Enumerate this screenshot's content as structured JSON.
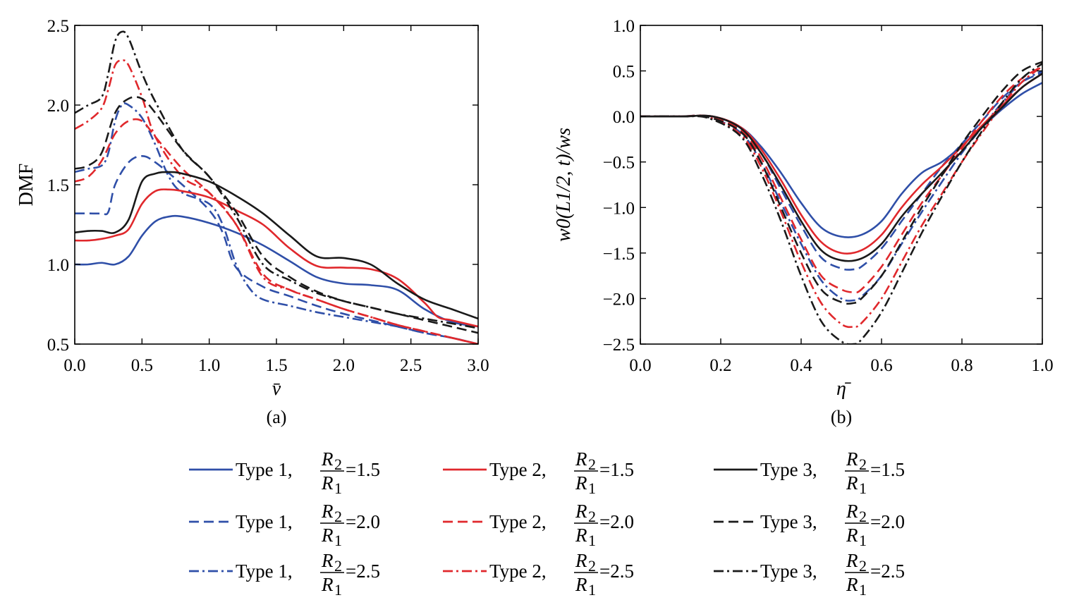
{
  "chart_data": [
    {
      "id": "a",
      "type": "line",
      "caption": "(a)",
      "xlabel": "v̄",
      "ylabel": "DMF",
      "xlim": [
        0.0,
        3.0
      ],
      "ylim": [
        0.5,
        2.5
      ],
      "xticks": [
        "0.0",
        "0.5",
        "1.0",
        "1.5",
        "2.0",
        "2.5",
        "3.0"
      ],
      "yticks": [
        "0.5",
        "1.0",
        "1.5",
        "2.0",
        "2.5"
      ],
      "grid": false,
      "series": [
        {
          "name": "Type 1, R2/R1=1.5",
          "color": "#2f4fa8",
          "dash": "solid",
          "x": [
            0,
            0.1,
            0.2,
            0.3,
            0.4,
            0.5,
            0.6,
            0.7,
            0.8,
            1.0,
            1.2,
            1.4,
            1.6,
            1.8,
            2.0,
            2.2,
            2.4,
            2.6,
            2.8,
            3.0
          ],
          "y": [
            1.0,
            1.0,
            1.01,
            1.0,
            1.05,
            1.18,
            1.27,
            1.3,
            1.3,
            1.26,
            1.2,
            1.12,
            1.02,
            0.92,
            0.88,
            0.87,
            0.84,
            0.72,
            0.64,
            0.61
          ]
        },
        {
          "name": "Type 1, R2/R1=2.0",
          "color": "#2f4fa8",
          "dash": "dashed",
          "x": [
            0,
            0.1,
            0.2,
            0.25,
            0.3,
            0.4,
            0.5,
            0.6,
            0.8,
            1.0,
            1.1,
            1.2,
            1.4,
            1.6,
            1.8,
            2.0,
            2.2,
            2.4,
            2.6,
            2.8,
            3.0
          ],
          "y": [
            1.32,
            1.32,
            1.32,
            1.33,
            1.5,
            1.64,
            1.68,
            1.64,
            1.5,
            1.34,
            1.2,
            0.98,
            0.86,
            0.8,
            0.74,
            0.69,
            0.65,
            0.61,
            0.57,
            0.54,
            0.5
          ]
        },
        {
          "name": "Type 1, R2/R1=2.5",
          "color": "#2f4fa8",
          "dash": "dashdot",
          "x": [
            0,
            0.1,
            0.2,
            0.25,
            0.3,
            0.35,
            0.4,
            0.5,
            0.6,
            0.7,
            0.8,
            1.0,
            1.1,
            1.2,
            1.3,
            1.4,
            1.6,
            1.8,
            2.0,
            2.2,
            2.4,
            2.6,
            2.8,
            3.0
          ],
          "y": [
            1.58,
            1.6,
            1.62,
            1.7,
            1.9,
            2.0,
            2.0,
            1.92,
            1.75,
            1.55,
            1.45,
            1.38,
            1.25,
            1.0,
            0.85,
            0.78,
            0.74,
            0.7,
            0.67,
            0.64,
            0.61,
            0.57,
            0.54,
            0.5
          ]
        },
        {
          "name": "Type 2, R2/R1=1.5",
          "color": "#e0282c",
          "dash": "solid",
          "x": [
            0,
            0.1,
            0.2,
            0.3,
            0.4,
            0.5,
            0.6,
            0.7,
            0.8,
            1.0,
            1.2,
            1.4,
            1.6,
            1.8,
            2.0,
            2.2,
            2.4,
            2.6,
            2.7,
            2.8,
            3.0
          ],
          "y": [
            1.15,
            1.15,
            1.16,
            1.18,
            1.22,
            1.38,
            1.46,
            1.47,
            1.46,
            1.42,
            1.34,
            1.25,
            1.1,
            0.99,
            0.98,
            0.97,
            0.91,
            0.76,
            0.67,
            0.65,
            0.61
          ]
        },
        {
          "name": "Type 2, R2/R1=2.0",
          "color": "#e0282c",
          "dash": "dashed",
          "x": [
            0,
            0.1,
            0.2,
            0.3,
            0.4,
            0.5,
            0.6,
            0.8,
            1.0,
            1.2,
            1.4,
            1.6,
            1.8,
            2.0,
            2.2,
            2.4,
            2.6,
            2.8,
            3.0
          ],
          "y": [
            1.52,
            1.55,
            1.65,
            1.82,
            1.9,
            1.9,
            1.8,
            1.6,
            1.45,
            1.25,
            0.94,
            0.84,
            0.78,
            0.72,
            0.67,
            0.62,
            0.58,
            0.54,
            0.5
          ]
        },
        {
          "name": "Type 2, R2/R1=2.5",
          "color": "#e0282c",
          "dash": "dashdot",
          "x": [
            0,
            0.1,
            0.2,
            0.25,
            0.3,
            0.35,
            0.4,
            0.5,
            0.6,
            0.8,
            1.0,
            1.2,
            1.4,
            1.6,
            1.8,
            2.0,
            2.2,
            2.4,
            2.6,
            2.8,
            3.0
          ],
          "y": [
            1.85,
            1.9,
            1.98,
            2.1,
            2.25,
            2.28,
            2.25,
            2.05,
            1.8,
            1.55,
            1.45,
            1.25,
            0.92,
            0.84,
            0.78,
            0.72,
            0.67,
            0.62,
            0.58,
            0.54,
            0.5
          ]
        },
        {
          "name": "Type 3, R2/R1=1.5",
          "color": "#1a1a1a",
          "dash": "solid",
          "x": [
            0,
            0.1,
            0.2,
            0.3,
            0.4,
            0.5,
            0.6,
            0.7,
            0.8,
            1.0,
            1.2,
            1.4,
            1.6,
            1.8,
            2.0,
            2.2,
            2.4,
            2.6,
            2.8,
            3.0
          ],
          "y": [
            1.2,
            1.21,
            1.21,
            1.2,
            1.28,
            1.52,
            1.57,
            1.58,
            1.57,
            1.52,
            1.43,
            1.32,
            1.18,
            1.05,
            1.04,
            1.0,
            0.88,
            0.78,
            0.72,
            0.66
          ]
        },
        {
          "name": "Type 3, R2/R1=2.0",
          "color": "#1a1a1a",
          "dash": "dashed",
          "x": [
            0,
            0.1,
            0.2,
            0.3,
            0.4,
            0.5,
            0.6,
            0.8,
            1.0,
            1.2,
            1.4,
            1.6,
            1.8,
            2.0,
            2.2,
            2.4,
            2.6,
            2.8,
            3.0
          ],
          "y": [
            1.6,
            1.62,
            1.7,
            1.95,
            2.04,
            2.04,
            1.95,
            1.72,
            1.55,
            1.33,
            1.05,
            0.92,
            0.83,
            0.77,
            0.73,
            0.69,
            0.65,
            0.61,
            0.57
          ]
        },
        {
          "name": "Type 3, R2/R1=2.5",
          "color": "#1a1a1a",
          "dash": "dashdot",
          "x": [
            0,
            0.1,
            0.2,
            0.25,
            0.3,
            0.35,
            0.4,
            0.5,
            0.6,
            0.8,
            1.0,
            1.2,
            1.4,
            1.6,
            1.8,
            2.0,
            2.2,
            2.4,
            2.6,
            2.8,
            3.0
          ],
          "y": [
            1.95,
            2.0,
            2.05,
            2.2,
            2.4,
            2.46,
            2.42,
            2.2,
            2.02,
            1.72,
            1.55,
            1.3,
            1.0,
            0.9,
            0.82,
            0.77,
            0.73,
            0.69,
            0.66,
            0.63,
            0.6
          ]
        }
      ]
    },
    {
      "id": "b",
      "type": "line",
      "caption": "(b)",
      "xlabel": "η̄",
      "ylabel": "w0(L1/2, t)/ws",
      "xlim": [
        0.0,
        1.0
      ],
      "ylim": [
        -2.5,
        1.0
      ],
      "xticks": [
        "0.0",
        "0.2",
        "0.4",
        "0.6",
        "0.8",
        "1.0"
      ],
      "yticks": [
        "1.0",
        "0.5",
        "0.0",
        "−0.5",
        "−1.0",
        "−1.5",
        "−2.0",
        "−2.5"
      ],
      "grid": false,
      "series": [
        {
          "name": "Type 1, R2/R1=1.5",
          "color": "#2f4fa8",
          "dash": "solid",
          "x": [
            0,
            0.1,
            0.18,
            0.25,
            0.3,
            0.35,
            0.4,
            0.45,
            0.5,
            0.55,
            0.6,
            0.65,
            0.7,
            0.75,
            0.8,
            0.85,
            0.9,
            0.95,
            1.0
          ],
          "y": [
            0,
            0,
            0,
            -0.12,
            -0.33,
            -0.62,
            -0.95,
            -1.22,
            -1.32,
            -1.3,
            -1.15,
            -0.85,
            -0.62,
            -0.5,
            -0.32,
            -0.12,
            0.08,
            0.25,
            0.37
          ]
        },
        {
          "name": "Type 1, R2/R1=2.0",
          "color": "#2f4fa8",
          "dash": "dashed",
          "x": [
            0,
            0.1,
            0.17,
            0.25,
            0.3,
            0.35,
            0.4,
            0.45,
            0.5,
            0.53,
            0.55,
            0.6,
            0.65,
            0.7,
            0.75,
            0.8,
            0.85,
            0.9,
            0.95,
            1.0
          ],
          "y": [
            0,
            0,
            0,
            -0.15,
            -0.4,
            -0.8,
            -1.2,
            -1.55,
            -1.67,
            -1.68,
            -1.65,
            -1.45,
            -1.15,
            -0.85,
            -0.55,
            -0.3,
            -0.05,
            0.2,
            0.38,
            0.48
          ]
        },
        {
          "name": "Type 1, R2/R1=2.5",
          "color": "#2f4fa8",
          "dash": "dashdot",
          "x": [
            0,
            0.1,
            0.17,
            0.25,
            0.3,
            0.35,
            0.4,
            0.45,
            0.5,
            0.53,
            0.55,
            0.6,
            0.65,
            0.7,
            0.75,
            0.8,
            0.85,
            0.9,
            0.95,
            1.0
          ],
          "y": [
            0,
            0,
            -0.01,
            -0.18,
            -0.5,
            -0.95,
            -1.4,
            -1.8,
            -2.0,
            -2.02,
            -1.98,
            -1.75,
            -1.4,
            -1.05,
            -0.72,
            -0.4,
            -0.12,
            0.15,
            0.38,
            0.5
          ]
        },
        {
          "name": "Type 2, R2/R1=1.5",
          "color": "#e0282c",
          "dash": "solid",
          "x": [
            0,
            0.1,
            0.18,
            0.25,
            0.3,
            0.35,
            0.4,
            0.45,
            0.5,
            0.55,
            0.6,
            0.65,
            0.7,
            0.75,
            0.8,
            0.85,
            0.9,
            0.95,
            1.0
          ],
          "y": [
            0,
            0,
            0,
            -0.12,
            -0.36,
            -0.7,
            -1.08,
            -1.38,
            -1.5,
            -1.47,
            -1.3,
            -1.0,
            -0.75,
            -0.55,
            -0.33,
            -0.1,
            0.12,
            0.32,
            0.47
          ]
        },
        {
          "name": "Type 2, R2/R1=2.0",
          "color": "#e0282c",
          "dash": "dashed",
          "x": [
            0,
            0.1,
            0.17,
            0.25,
            0.3,
            0.35,
            0.4,
            0.45,
            0.5,
            0.53,
            0.55,
            0.6,
            0.65,
            0.7,
            0.75,
            0.8,
            0.85,
            0.9,
            0.95,
            1.0
          ],
          "y": [
            0,
            0,
            0,
            -0.15,
            -0.45,
            -0.9,
            -1.35,
            -1.75,
            -1.9,
            -1.93,
            -1.9,
            -1.65,
            -1.3,
            -0.95,
            -0.65,
            -0.35,
            -0.05,
            0.22,
            0.42,
            0.55
          ]
        },
        {
          "name": "Type 2, R2/R1=2.5",
          "color": "#e0282c",
          "dash": "dashdot",
          "x": [
            0,
            0.1,
            0.17,
            0.25,
            0.3,
            0.35,
            0.4,
            0.45,
            0.5,
            0.53,
            0.55,
            0.6,
            0.65,
            0.7,
            0.75,
            0.8,
            0.85,
            0.9,
            0.95,
            1.0
          ],
          "y": [
            0,
            0,
            -0.01,
            -0.2,
            -0.55,
            -1.05,
            -1.6,
            -2.05,
            -2.28,
            -2.31,
            -2.27,
            -2.0,
            -1.6,
            -1.2,
            -0.85,
            -0.5,
            -0.18,
            0.12,
            0.38,
            0.55
          ]
        },
        {
          "name": "Type 3, R2/R1=1.5",
          "color": "#1a1a1a",
          "dash": "solid",
          "x": [
            0,
            0.1,
            0.18,
            0.25,
            0.3,
            0.35,
            0.4,
            0.45,
            0.5,
            0.55,
            0.6,
            0.65,
            0.7,
            0.75,
            0.8,
            0.85,
            0.9,
            0.95,
            1.0
          ],
          "y": [
            0,
            0,
            0,
            -0.13,
            -0.4,
            -0.76,
            -1.15,
            -1.47,
            -1.58,
            -1.56,
            -1.4,
            -1.1,
            -0.85,
            -0.62,
            -0.38,
            -0.12,
            0.1,
            0.32,
            0.47
          ]
        },
        {
          "name": "Type 3, R2/R1=2.0",
          "color": "#1a1a1a",
          "dash": "dashed",
          "x": [
            0,
            0.1,
            0.17,
            0.25,
            0.3,
            0.35,
            0.4,
            0.45,
            0.5,
            0.53,
            0.55,
            0.6,
            0.65,
            0.7,
            0.75,
            0.8,
            0.85,
            0.9,
            0.95,
            1.0
          ],
          "y": [
            0,
            0,
            -0.01,
            -0.17,
            -0.5,
            -1.0,
            -1.5,
            -1.9,
            -2.04,
            -2.05,
            -2.0,
            -1.75,
            -1.38,
            -1.0,
            -0.65,
            -0.3,
            0.0,
            0.28,
            0.5,
            0.6
          ]
        },
        {
          "name": "Type 3, R2/R1=2.5",
          "color": "#1a1a1a",
          "dash": "dashdot",
          "x": [
            0,
            0.1,
            0.17,
            0.25,
            0.3,
            0.35,
            0.4,
            0.45,
            0.5,
            0.53,
            0.55,
            0.6,
            0.65,
            0.7,
            0.75,
            0.8,
            0.85,
            0.9,
            0.95,
            1.0
          ],
          "y": [
            0,
            0,
            -0.02,
            -0.22,
            -0.62,
            -1.15,
            -1.75,
            -2.25,
            -2.47,
            -2.5,
            -2.45,
            -2.15,
            -1.72,
            -1.28,
            -0.88,
            -0.5,
            -0.16,
            0.15,
            0.42,
            0.58
          ]
        }
      ]
    }
  ],
  "legend": {
    "placement": "bottom",
    "entries": [
      {
        "type": "Type 1,",
        "num": "R",
        "num_sub": "2",
        "den": "R",
        "den_sub": "1",
        "value": "=1.5",
        "color": "#2f4fa8",
        "dash": "solid"
      },
      {
        "type": "Type 2,",
        "num": "R",
        "num_sub": "2",
        "den": "R",
        "den_sub": "1",
        "value": "=1.5",
        "color": "#e0282c",
        "dash": "solid"
      },
      {
        "type": "Type 3,",
        "num": "R",
        "num_sub": "2",
        "den": "R",
        "den_sub": "1",
        "value": "=1.5",
        "color": "#1a1a1a",
        "dash": "solid"
      },
      {
        "type": "Type 1,",
        "num": "R",
        "num_sub": "2",
        "den": "R",
        "den_sub": "1",
        "value": "=2.0",
        "color": "#2f4fa8",
        "dash": "dashed"
      },
      {
        "type": "Type 2,",
        "num": "R",
        "num_sub": "2",
        "den": "R",
        "den_sub": "1",
        "value": "=2.0",
        "color": "#e0282c",
        "dash": "dashed"
      },
      {
        "type": "Type 3,",
        "num": "R",
        "num_sub": "2",
        "den": "R",
        "den_sub": "1",
        "value": "=2.0",
        "color": "#1a1a1a",
        "dash": "dashed"
      },
      {
        "type": "Type 1,",
        "num": "R",
        "num_sub": "2",
        "den": "R",
        "den_sub": "1",
        "value": "=2.5",
        "color": "#2f4fa8",
        "dash": "dashdot"
      },
      {
        "type": "Type 2,",
        "num": "R",
        "num_sub": "2",
        "den": "R",
        "den_sub": "1",
        "value": "=2.5",
        "color": "#e0282c",
        "dash": "dashdot"
      },
      {
        "type": "Type 3,",
        "num": "R",
        "num_sub": "2",
        "den": "R",
        "den_sub": "1",
        "value": "=2.5",
        "color": "#1a1a1a",
        "dash": "dashdot"
      }
    ]
  }
}
